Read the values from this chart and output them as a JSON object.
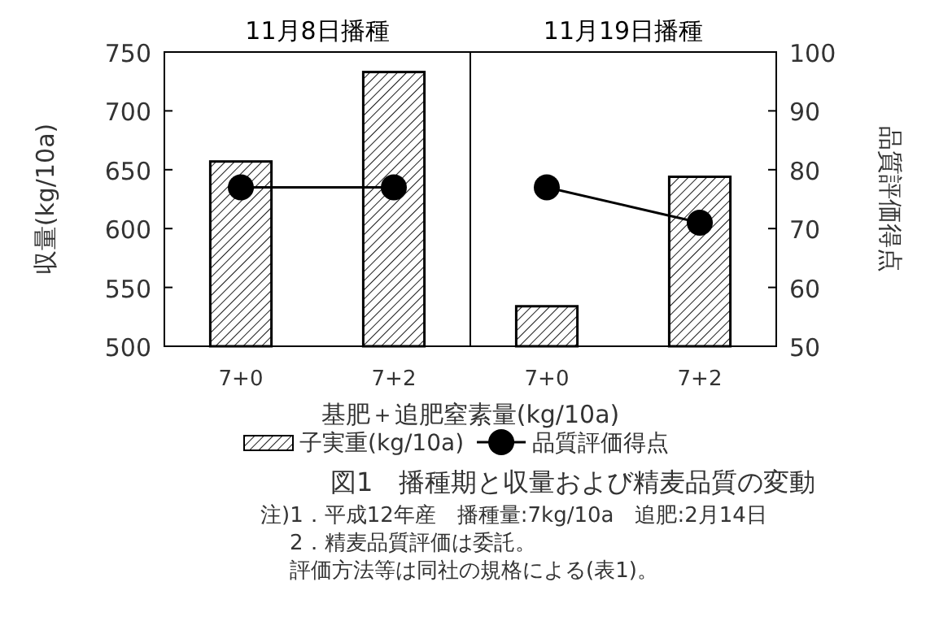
{
  "chart_data": [
    {
      "type": "bar",
      "title": "11月8日播種",
      "categories": [
        "7+0",
        "7+2"
      ],
      "xlabel": "基肥＋追肥窒素量(kg/10a)",
      "ylabel": "収量(kg/10a)",
      "ylim": [
        500,
        750
      ],
      "yticks": [
        500,
        550,
        600,
        650,
        700,
        750
      ],
      "y2lim": [
        50,
        100
      ],
      "tick_labels": [
        "x",
        "y"
      ],
      "legend": "bottom",
      "series": [
        {
          "name": "子実重(kg/10a)",
          "color": "#000000",
          "values": [
            657,
            733
          ]
        },
        {
          "name": "品質評価得点",
          "type": "line",
          "axis": "y2",
          "color": "#000000",
          "marker": "circle",
          "values": [
            77,
            77
          ]
        }
      ],
      "annotations": [
        "図1　播種期と収量および精麦品質の変動",
        "注)1．平成12年産　播種量:7kg/10a　追肥:2月14日",
        "2．精麦品質評価は委託。",
        "評価方法等は同社の規格による(表1)。"
      ]
    },
    {
      "type": "bar",
      "title": "11月19日播種",
      "categories": [
        "7+0",
        "7+2"
      ],
      "y2label": "品質評価得点",
      "ylim": [
        500,
        750
      ],
      "y2lim": [
        50,
        100
      ],
      "y2ticks": [
        50,
        60,
        70,
        80,
        90,
        100
      ],
      "tick_labels": [
        "x",
        "y2"
      ],
      "series": [
        {
          "color": "#000000",
          "values": [
            534,
            644
          ]
        },
        {
          "type": "line",
          "axis": "y2",
          "color": "#000000",
          "marker": "circle",
          "values": [
            77,
            71
          ]
        }
      ]
    }
  ]
}
